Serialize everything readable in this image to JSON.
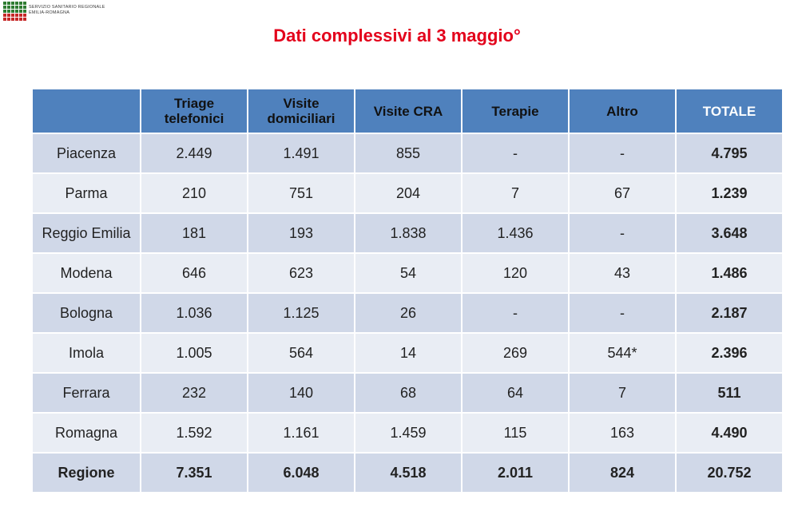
{
  "logo": {
    "line1": "SERVIZIO SANITARIO REGIONALE",
    "line2": "EMILIA-ROMAGNA"
  },
  "title": "Dati complessivi al 3 maggio°",
  "table": {
    "headers": [
      "",
      "Triage telefonici",
      "Visite domiciliari",
      "Visite CRA",
      "Terapie",
      "Altro",
      "TOTALE"
    ],
    "rows": [
      [
        "Piacenza",
        "2.449",
        "1.491",
        "855",
        "-",
        "-",
        "4.795"
      ],
      [
        "Parma",
        "210",
        "751",
        "204",
        "7",
        "67",
        "1.239"
      ],
      [
        "Reggio Emilia",
        "181",
        "193",
        "1.838",
        "1.436",
        "-",
        "3.648"
      ],
      [
        "Modena",
        "646",
        "623",
        "54",
        "120",
        "43",
        "1.486"
      ],
      [
        "Bologna",
        "1.036",
        "1.125",
        "26",
        "-",
        "-",
        "2.187"
      ],
      [
        "Imola",
        "1.005",
        "564",
        "14",
        "269",
        "544*",
        "2.396"
      ],
      [
        "Ferrara",
        "232",
        "140",
        "68",
        "64",
        "7",
        "511"
      ],
      [
        "Romagna",
        "1.592",
        "1.161",
        "1.459",
        "115",
        "163",
        "4.490"
      ],
      [
        "Regione",
        "7.351",
        "6.048",
        "4.518",
        "2.011",
        "824",
        "20.752"
      ]
    ]
  },
  "colors": {
    "title": "#e3001b",
    "header_bg": "#4f81bd",
    "row_dark": "#d0d8e8",
    "row_light": "#e9edf4"
  }
}
